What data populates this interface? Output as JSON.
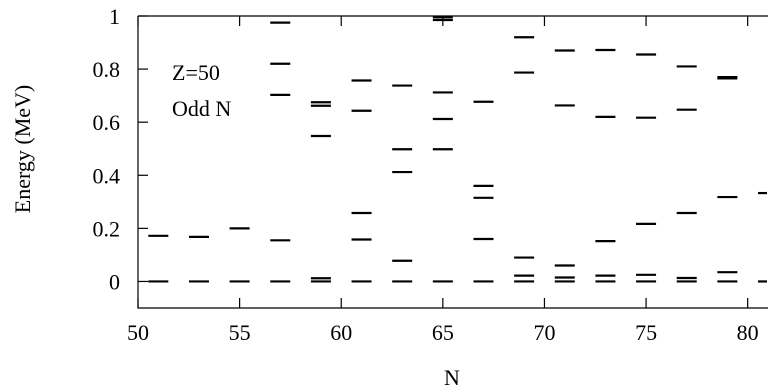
{
  "chart_data": {
    "type": "scatter",
    "marker": "horizontal-dash",
    "title": "",
    "xlabel": "N",
    "ylabel": "Energy (MeV)",
    "xlim": [
      50,
      81
    ],
    "ylim": [
      -0.1,
      1.0
    ],
    "xticks": [
      50,
      55,
      60,
      65,
      70,
      75,
      80
    ],
    "xtick_labels": [
      "50",
      "55",
      "60",
      "65",
      "70",
      "75",
      "80"
    ],
    "yticks": [
      0,
      0.2,
      0.4,
      0.6,
      0.8,
      1.0
    ],
    "ytick_labels": [
      "0",
      "0.2",
      "0.4",
      "0.6",
      "0.8",
      "1"
    ],
    "annotations": [
      "Z=50",
      "Odd N"
    ],
    "grid": false,
    "levels": [
      {
        "N": 51,
        "energies": [
          0.0,
          0.172
        ]
      },
      {
        "N": 53,
        "energies": [
          0.0,
          0.168
        ]
      },
      {
        "N": 55,
        "energies": [
          0.0,
          0.2
        ]
      },
      {
        "N": 57,
        "energies": [
          0.0,
          0.155,
          0.703,
          0.82,
          0.975
        ]
      },
      {
        "N": 59,
        "energies": [
          0.0,
          0.012,
          0.548,
          0.662,
          0.675
        ]
      },
      {
        "N": 61,
        "energies": [
          0.0,
          0.158,
          0.258,
          0.643,
          0.757
        ]
      },
      {
        "N": 63,
        "energies": [
          0.0,
          0.078,
          0.412,
          0.498,
          0.738
        ]
      },
      {
        "N": 65,
        "energies": [
          0.0,
          0.498,
          0.612,
          0.712,
          0.985,
          0.995
        ]
      },
      {
        "N": 67,
        "energies": [
          0.0,
          0.16,
          0.315,
          0.36,
          0.677
        ]
      },
      {
        "N": 69,
        "energies": [
          0.0,
          0.022,
          0.09,
          0.787,
          0.92
        ]
      },
      {
        "N": 71,
        "energies": [
          0.0,
          0.015,
          0.06,
          0.663,
          0.87
        ]
      },
      {
        "N": 73,
        "energies": [
          0.0,
          0.022,
          0.152,
          0.62,
          0.872
        ]
      },
      {
        "N": 75,
        "energies": [
          0.0,
          0.025,
          0.217,
          0.617,
          0.855
        ]
      },
      {
        "N": 77,
        "energies": [
          0.0,
          0.013,
          0.258,
          0.647,
          0.81
        ]
      },
      {
        "N": 79,
        "energies": [
          0.0,
          0.035,
          0.318,
          0.765,
          0.77
        ]
      },
      {
        "N": 81,
        "energies": [
          0.0,
          0.333
        ]
      }
    ]
  }
}
